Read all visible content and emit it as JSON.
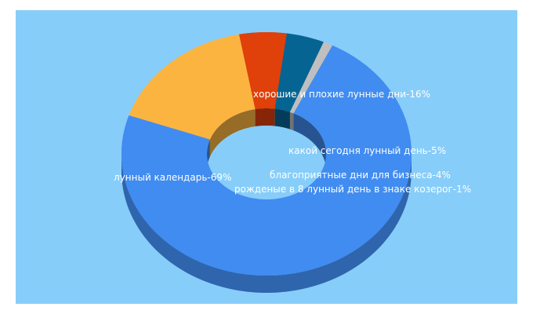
{
  "colors": {
    "background": "#87cdf9",
    "label_text": "#ffffff"
  },
  "chart_data": {
    "type": "pie",
    "variant": "3d-donut",
    "title": "",
    "legend": "none",
    "slices": [
      {
        "label": "лунный календарь-69%",
        "value": 69,
        "color": "#418cf0"
      },
      {
        "label": "хорошие и плохие лунные дни-16%",
        "value": 16,
        "color": "#fcb441"
      },
      {
        "label": "какой сегодня лунный день-5%",
        "value": 5,
        "color": "#e0400a"
      },
      {
        "label": "благоприятные дни для бизнеса-4%",
        "value": 4,
        "color": "#056492"
      },
      {
        "label": "рожденые в 8 лунный день в знаке козерог-1%",
        "value": 1,
        "color": "#bfbfbf"
      }
    ]
  }
}
